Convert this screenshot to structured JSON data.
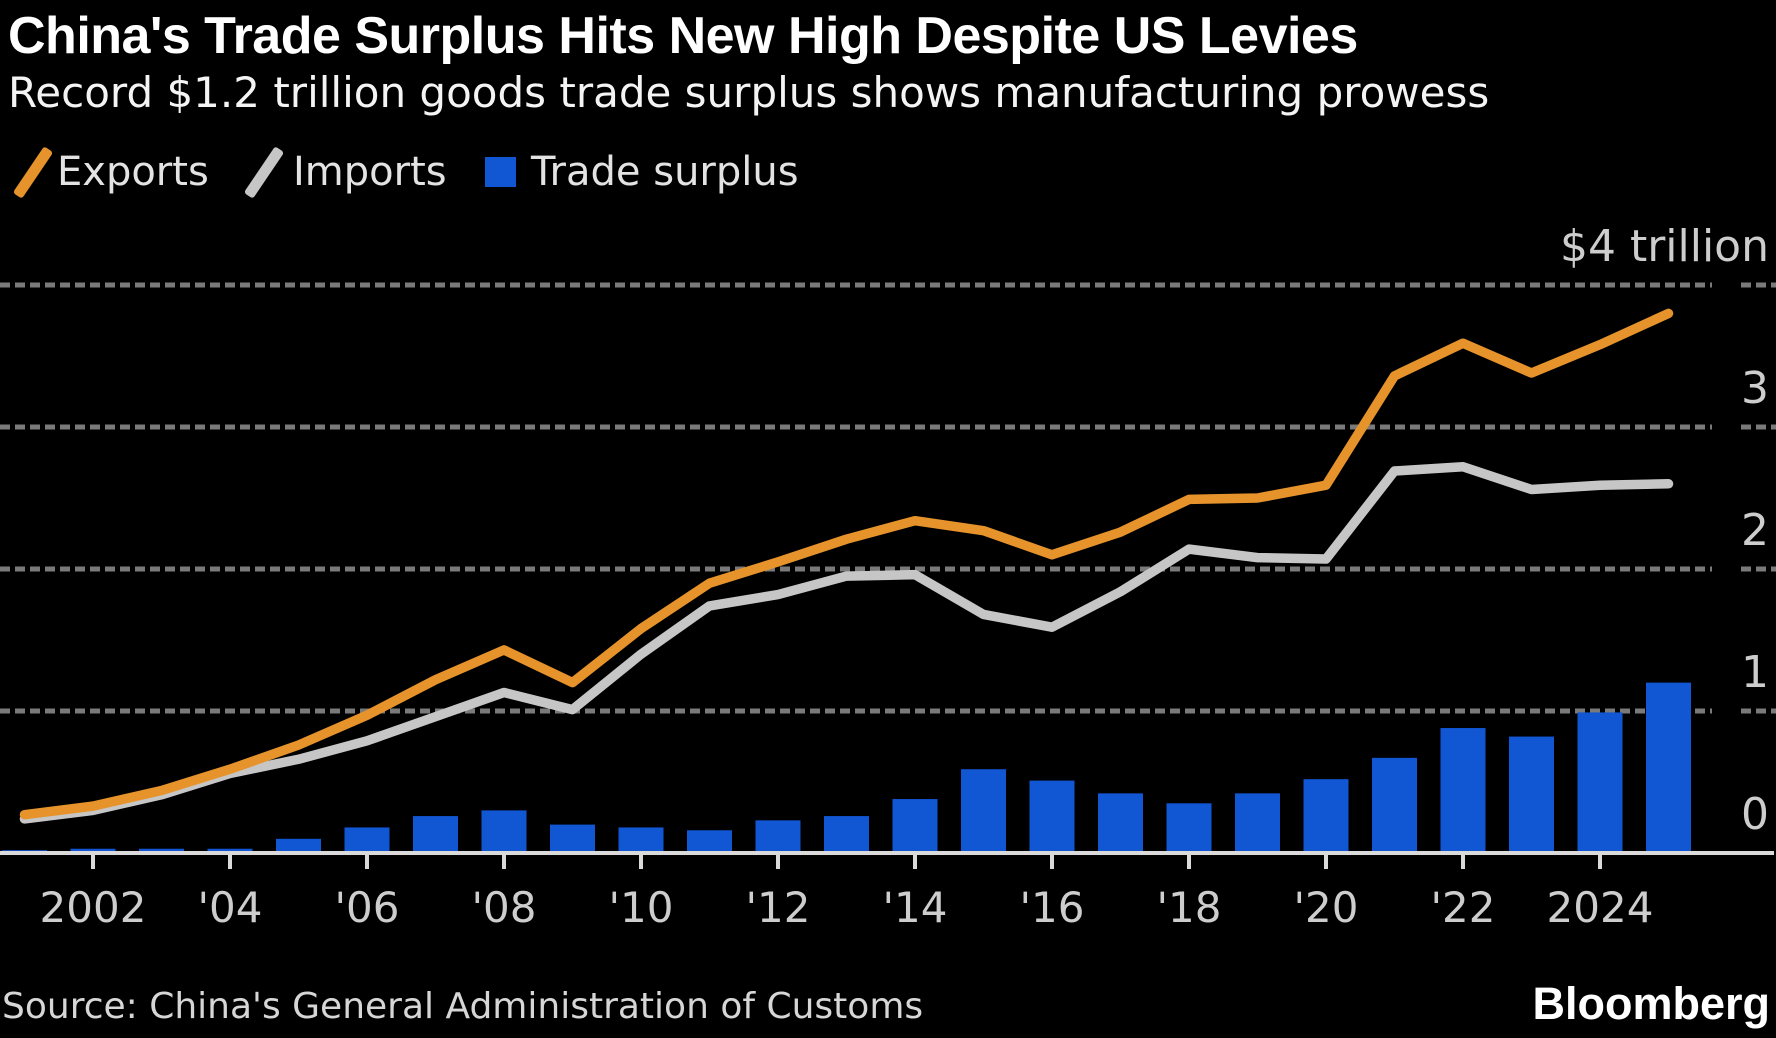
{
  "header": {
    "title": "China's Trade Surplus Hits New High Despite US Levies",
    "subtitle": "Record $1.2 trillion goods trade surplus shows manufacturing prowess"
  },
  "footer": {
    "source": "Source: China's General Administration of Customs",
    "logo": "Bloomberg"
  },
  "colors": {
    "background": "#000000",
    "exports_line": "#E6932C",
    "imports_line": "#C6C6C6",
    "surplus_bar": "#1156D3",
    "gridline": "#7A7A7A",
    "axis_line": "#DADADA",
    "axis_text": "#CDCDCD",
    "legend_text": "#E3E3E3"
  },
  "chart_data": {
    "type": "combo",
    "title": "China's Trade Surplus Hits New High Despite US Levies",
    "subtitle": "Record $1.2 trillion goods trade surplus shows manufacturing prowess",
    "unit": "USD trillion",
    "x": [
      2001,
      2002,
      2003,
      2004,
      2005,
      2006,
      2007,
      2008,
      2009,
      2010,
      2011,
      2012,
      2013,
      2014,
      2015,
      2016,
      2017,
      2018,
      2019,
      2020,
      2021,
      2022,
      2023,
      2024,
      2025
    ],
    "series": [
      {
        "name": "Exports",
        "type": "line",
        "color": "#E6932C",
        "values": [
          0.27,
          0.33,
          0.44,
          0.59,
          0.76,
          0.97,
          1.22,
          1.43,
          1.2,
          1.58,
          1.9,
          2.05,
          2.21,
          2.34,
          2.27,
          2.1,
          2.26,
          2.49,
          2.5,
          2.59,
          3.36,
          3.59,
          3.38,
          3.58,
          3.8
        ]
      },
      {
        "name": "Imports",
        "type": "line",
        "color": "#C6C6C6",
        "values": [
          0.24,
          0.3,
          0.41,
          0.56,
          0.66,
          0.79,
          0.96,
          1.13,
          1.01,
          1.4,
          1.74,
          1.82,
          1.95,
          1.96,
          1.68,
          1.59,
          1.84,
          2.14,
          2.08,
          2.07,
          2.69,
          2.72,
          2.56,
          2.59,
          2.6
        ]
      },
      {
        "name": "Trade surplus",
        "type": "bar",
        "color": "#1156D3",
        "values": [
          0.02,
          0.03,
          0.03,
          0.03,
          0.1,
          0.18,
          0.26,
          0.3,
          0.2,
          0.18,
          0.16,
          0.23,
          0.26,
          0.38,
          0.59,
          0.51,
          0.42,
          0.35,
          0.42,
          0.52,
          0.67,
          0.88,
          0.82,
          0.99,
          1.2
        ]
      }
    ],
    "ylim": [
      0,
      4
    ],
    "y_ticks": [
      {
        "value": 4,
        "label": "$4 trillion"
      },
      {
        "value": 3,
        "label": "3"
      },
      {
        "value": 2,
        "label": "2"
      },
      {
        "value": 1,
        "label": "1"
      },
      {
        "value": 0,
        "label": "0"
      }
    ],
    "x_ticks": [
      {
        "year": 2002,
        "label": "2002"
      },
      {
        "year": 2004,
        "label": "'04"
      },
      {
        "year": 2006,
        "label": "'06"
      },
      {
        "year": 2008,
        "label": "'08"
      },
      {
        "year": 2010,
        "label": "'10"
      },
      {
        "year": 2012,
        "label": "'12"
      },
      {
        "year": 2014,
        "label": "'14"
      },
      {
        "year": 2016,
        "label": "'16"
      },
      {
        "year": 2018,
        "label": "'18"
      },
      {
        "year": 2020,
        "label": "'20"
      },
      {
        "year": 2022,
        "label": "'22"
      },
      {
        "year": 2024,
        "label": "2024"
      }
    ],
    "grid": "horizontal-dashed",
    "legend_position": "top-left"
  }
}
